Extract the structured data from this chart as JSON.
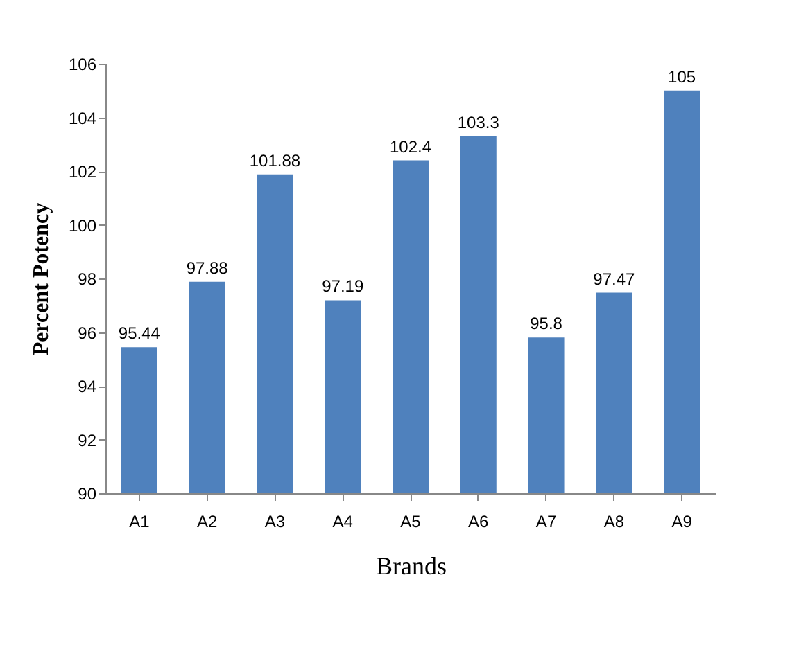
{
  "chart_data": {
    "type": "bar",
    "xlabel": "Brands",
    "ylabel": "Percent Potency",
    "categories": [
      "A1",
      "A2",
      "A3",
      "A4",
      "A5",
      "A6",
      "A7",
      "A8",
      "A9"
    ],
    "values": [
      95.44,
      97.88,
      101.88,
      97.19,
      102.4,
      103.3,
      95.8,
      97.47,
      105
    ],
    "color": "#4f81bd",
    "ylim": [
      90,
      106
    ],
    "yticks": [
      90,
      92,
      94,
      96,
      98,
      100,
      102,
      104,
      106
    ],
    "data_labels": true
  }
}
